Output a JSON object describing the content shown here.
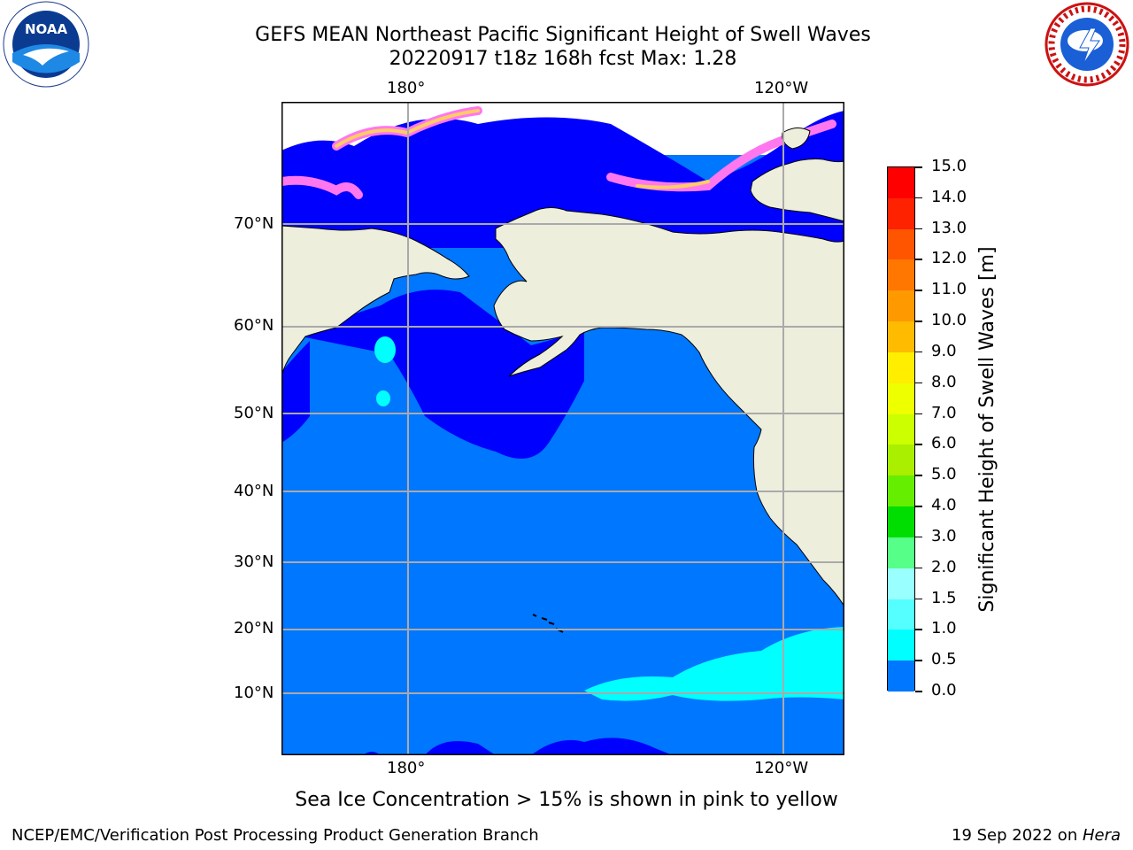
{
  "header": {
    "title_line1": "GEFS MEAN Northeast Pacific Significant Height of Swell Waves",
    "title_line2": "20220917 t18z 168h fcst   Max: 1.28"
  },
  "logos": {
    "left": {
      "text": "NOAA",
      "ring_text": "NATIONAL OCEANIC AND ATMOSPHERIC ADMINISTRATION · U.S. DEPARTMENT OF COMMERCE"
    },
    "right": {
      "ring_text": "NATIONAL WEATHER SERVICE"
    }
  },
  "map": {
    "lon_labels_top": [
      "180°",
      "120°W"
    ],
    "lon_labels_bottom": [
      "180°",
      "120°W"
    ],
    "lat_labels": [
      "70°N",
      "60°N",
      "50°N",
      "40°N",
      "30°N",
      "20°N",
      "10°N"
    ],
    "colors": {
      "ocean_main": "#0077ff",
      "ocean_low": "#0000ff",
      "swell_cyan": "#00ffff",
      "land": "#eeeedd",
      "grid": "#aaaaaa"
    }
  },
  "colorbar": {
    "title": "Significant Height of Swell Waves [m]",
    "tick_labels": [
      "15.0",
      "14.0",
      "13.0",
      "12.0",
      "11.0",
      "10.0",
      "9.0",
      "8.0",
      "7.0",
      "6.0",
      "5.0",
      "4.0",
      "3.0",
      "2.0",
      "1.5",
      "1.0",
      "0.5",
      "0.0"
    ],
    "segment_colors_top_to_bottom": [
      "#ff0000",
      "#ff2200",
      "#ff5500",
      "#ff7700",
      "#ff9900",
      "#ffbb00",
      "#ffee00",
      "#eeff00",
      "#ccff00",
      "#aaee00",
      "#66ee00",
      "#00dd00",
      "#55ff88",
      "#99ffff",
      "#55ffff",
      "#00ffff",
      "#0077ff",
      "#0000ff"
    ]
  },
  "footer": {
    "caption": "Sea Ice Concentration > 15% is shown in pink to yellow",
    "left_credit": "NCEP/EMC/Verification Post Processing Product Generation Branch",
    "date_text": "19 Sep 2022 on ",
    "machine": "Hera"
  }
}
